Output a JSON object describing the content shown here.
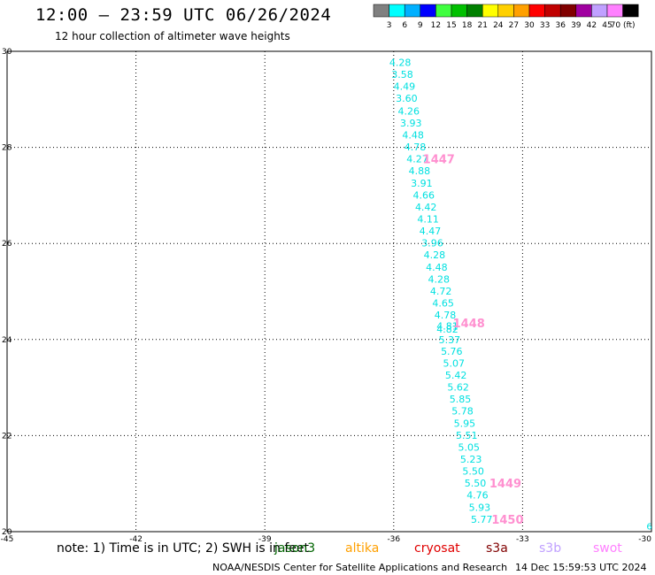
{
  "header": {
    "title": "12:00 – 23:59 UTC 06/26/2024",
    "subtitle": "12 hour collection of altimeter wave heights"
  },
  "legend": {
    "labels": [
      "3",
      "6",
      "9",
      "12",
      "15",
      "18",
      "21",
      "24",
      "27",
      "30",
      "33",
      "36",
      "39",
      "42",
      "45",
      "70 (ft)"
    ],
    "colors": [
      "#808080",
      "#00ffff",
      "#00b0ff",
      "#0000ff",
      "#40ff40",
      "#00c000",
      "#008000",
      "#ffff00",
      "#ffd000",
      "#ffa000",
      "#ff0000",
      "#c00000",
      "#800000",
      "#a000a0",
      "#c0a0ff",
      "#ff80ff",
      "#000000"
    ]
  },
  "chart_data": {
    "type": "scatter",
    "xlim": [
      -45,
      -30
    ],
    "ylim": [
      20,
      30
    ],
    "x_ticks": [
      -45,
      -42,
      -39,
      -36,
      -33,
      -30
    ],
    "y_ticks": [
      20,
      22,
      24,
      26,
      28,
      30
    ],
    "x_tick_labels": [
      "-45",
      "-42",
      "-39",
      "-36",
      "-33",
      "-30"
    ],
    "y_tick_labels": [
      "20",
      "22",
      "24",
      "26",
      "28",
      "30"
    ],
    "grid": true,
    "points": [
      {
        "x": -35.85,
        "y": 29.77,
        "label": "4.28"
      },
      {
        "x": -35.8,
        "y": 29.52,
        "label": "3.58"
      },
      {
        "x": -35.75,
        "y": 29.27,
        "label": "4.49"
      },
      {
        "x": -35.7,
        "y": 29.02,
        "label": "3.60"
      },
      {
        "x": -35.65,
        "y": 28.76,
        "label": "4.26"
      },
      {
        "x": -35.6,
        "y": 28.51,
        "label": "3.93"
      },
      {
        "x": -35.55,
        "y": 28.26,
        "label": "4.48"
      },
      {
        "x": -35.5,
        "y": 28.01,
        "label": "4.78"
      },
      {
        "x": -35.45,
        "y": 27.76,
        "label": "4.27"
      },
      {
        "x": -35.4,
        "y": 27.51,
        "label": "4.88"
      },
      {
        "x": -35.35,
        "y": 27.26,
        "label": "3.91"
      },
      {
        "x": -35.3,
        "y": 27.01,
        "label": "4.66"
      },
      {
        "x": -35.25,
        "y": 26.76,
        "label": "4.42"
      },
      {
        "x": -35.2,
        "y": 26.51,
        "label": "4.11"
      },
      {
        "x": -35.15,
        "y": 26.26,
        "label": "4.47"
      },
      {
        "x": -35.1,
        "y": 26.01,
        "label": "3.96"
      },
      {
        "x": -35.05,
        "y": 25.76,
        "label": "4.28"
      },
      {
        "x": -35.0,
        "y": 25.51,
        "label": "4.48"
      },
      {
        "x": -34.95,
        "y": 25.26,
        "label": "4.28"
      },
      {
        "x": -34.9,
        "y": 25.01,
        "label": "4.72"
      },
      {
        "x": -34.85,
        "y": 24.76,
        "label": "4.65"
      },
      {
        "x": -34.8,
        "y": 24.51,
        "label": "4.78"
      },
      {
        "x": -34.75,
        "y": 24.28,
        "label": "4.81"
      },
      {
        "x": -34.75,
        "y": 24.22,
        "label": "4.82"
      },
      {
        "x": -34.7,
        "y": 24.0,
        "label": "5.37"
      },
      {
        "x": -34.65,
        "y": 23.76,
        "label": "5.76"
      },
      {
        "x": -34.6,
        "y": 23.51,
        "label": "5.07"
      },
      {
        "x": -34.55,
        "y": 23.26,
        "label": "5.42"
      },
      {
        "x": -34.5,
        "y": 23.01,
        "label": "5.62"
      },
      {
        "x": -34.45,
        "y": 22.76,
        "label": "5.85"
      },
      {
        "x": -34.4,
        "y": 22.51,
        "label": "5.78"
      },
      {
        "x": -34.35,
        "y": 22.26,
        "label": "5.95"
      },
      {
        "x": -34.3,
        "y": 22.01,
        "label": "5.51"
      },
      {
        "x": -34.25,
        "y": 21.76,
        "label": "5.05"
      },
      {
        "x": -34.2,
        "y": 21.51,
        "label": "5.23"
      },
      {
        "x": -34.15,
        "y": 21.26,
        "label": "5.50"
      },
      {
        "x": -34.1,
        "y": 21.01,
        "label": "5.50"
      },
      {
        "x": -34.05,
        "y": 20.76,
        "label": "4.76"
      },
      {
        "x": -34.0,
        "y": 20.51,
        "label": "5.93"
      },
      {
        "x": -33.95,
        "y": 20.26,
        "label": "5.77"
      }
    ],
    "point_color": "#00e0e0",
    "time_labels": [
      {
        "x": -34.95,
        "y": 27.76,
        "label": "1447"
      },
      {
        "x": -34.25,
        "y": 24.35,
        "label": "1448"
      },
      {
        "x": -33.4,
        "y": 21.01,
        "label": "1449"
      },
      {
        "x": -33.35,
        "y": 20.26,
        "label": "1450"
      }
    ],
    "time_label_color": "#ff90d0",
    "edge_marker": {
      "x": -30.05,
      "y": 20.05,
      "label": "6"
    }
  },
  "bottom": {
    "note": "note:  1) Time is in UTC; 2) SWH is in feet",
    "missions": [
      {
        "name": "jason3",
        "color": "#006400"
      },
      {
        "name": "altika",
        "color": "#ffa000"
      },
      {
        "name": "cryosat",
        "color": "#e00000"
      },
      {
        "name": "s3a",
        "color": "#800000"
      },
      {
        "name": "s3b",
        "color": "#c0a0ff"
      },
      {
        "name": "swot",
        "color": "#ff80ff"
      }
    ],
    "footer_left": "NOAA/NESDIS Center for Satellite Applications and Research",
    "footer_right": "14 Dec 15:59:53 UTC 2024"
  }
}
